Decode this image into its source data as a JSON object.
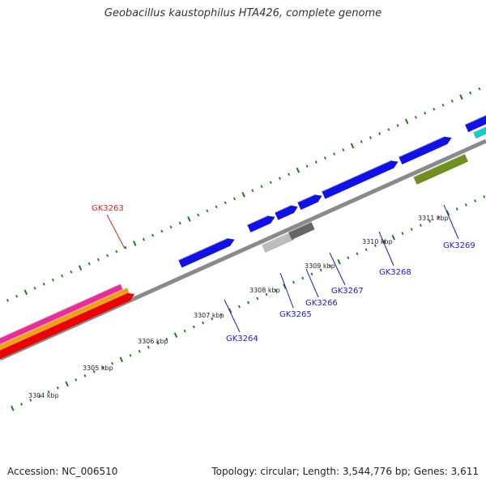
{
  "title": "Geobacillus kaustophilus HTA426, complete genome",
  "footer": {
    "accession": "Accession: NC_006510",
    "summary": "Topology: circular; Length: 3,544,776 bp; Genes: 3,611"
  },
  "colors": {
    "backbone": "#8a8a8a",
    "tick": "#1f7a1f",
    "gene_blue": "#1010e8",
    "gene_red": "#ee0000",
    "gene_orange": "#f5a000",
    "gene_magenta": "#ee2a9a",
    "gene_gray": "#666666",
    "gene_lightgray": "#bdbdbd",
    "gene_olive": "#6f8f1f",
    "gene_cyan": "#11cccc",
    "label_blue": "#1a1acc",
    "label_red": "#dd2222"
  },
  "kbp_labels": [
    "3304 kbp",
    "3305 kbp",
    "3306 kbp",
    "3307 kbp",
    "3308 kbp",
    "3309 kbp",
    "3310 kbp",
    "3311 kbp"
  ],
  "gene_labels": [
    {
      "name": "GK3263",
      "color": "label_red"
    },
    {
      "name": "GK3264",
      "color": "label_blue"
    },
    {
      "name": "GK3265",
      "color": "label_blue"
    },
    {
      "name": "GK3266",
      "color": "label_blue"
    },
    {
      "name": "GK3267",
      "color": "label_blue"
    },
    {
      "name": "GK3268",
      "color": "label_blue"
    },
    {
      "name": "GK3269",
      "color": "label_blue"
    }
  ]
}
